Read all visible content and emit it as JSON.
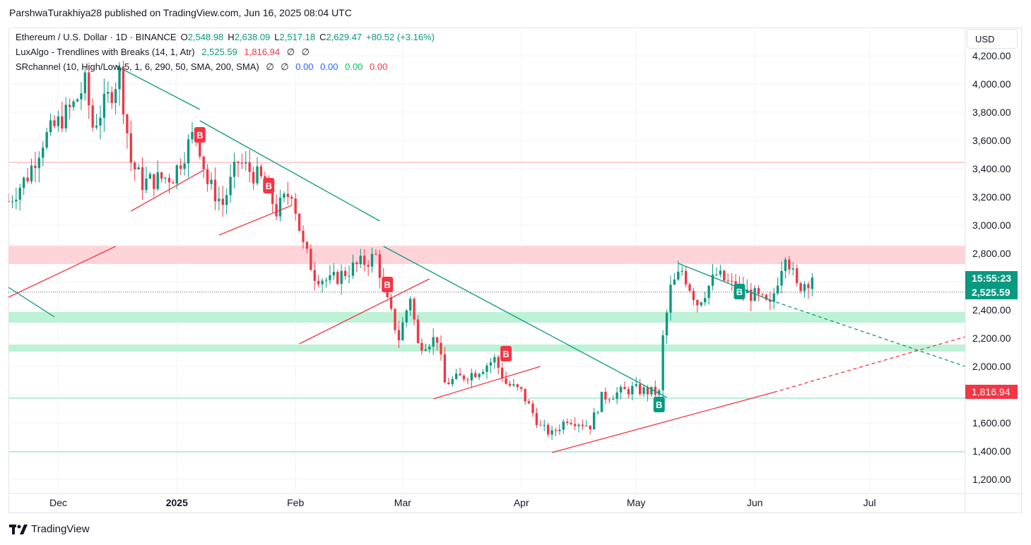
{
  "header": {
    "text": "ParshwaTurakhiya28 published on TradingView.com, Jun 16, 2025 08:04 UTC"
  },
  "legend": {
    "symbol": "Ethereum / U.S. Dollar · 1D · BINANCE",
    "open_label": "O",
    "open": "2,548.98",
    "high_label": "H",
    "high": "2,638.09",
    "low_label": "L",
    "low": "2,517.18",
    "close_label": "C",
    "close": "2,629.47",
    "change": "+80.52 (+3.16%)",
    "luxalgo_name": "LuxAlgo - Trendlines with Breaks (14, 1, Atr)",
    "luxalgo_v1": "2,525.59",
    "luxalgo_v2": "1,816.94",
    "luxalgo_v3": "∅",
    "luxalgo_v4": "∅",
    "sr_name": "SRchannel (10, High/Low, 5, 1, 6, 290, 50, SMA, 200, SMA)",
    "sr_v1": "∅",
    "sr_v2": "∅",
    "sr_v3": "0.00",
    "sr_v4": "0.00",
    "sr_v5": "0.00",
    "sr_v6": "0.00"
  },
  "currency_button": "USD",
  "price_tags": {
    "countdown": "15:55:23",
    "last_price": "2,525.59",
    "trendline_price": "1,816.94"
  },
  "footer": {
    "brand": "TradingView"
  },
  "colors": {
    "up": "#089981",
    "down": "#f23645",
    "resistance_zone": "#ffcdd2",
    "support_zone": "#b2f0d0",
    "trendline_bull": "#f23645",
    "trendline_bear": "#089981"
  },
  "chart_data": {
    "type": "candlestick",
    "symbol": "ETHUSD",
    "interval": "1D",
    "ylim": [
      1100,
      4400
    ],
    "y_ticks": [
      1200,
      1400,
      1600,
      1800,
      2000,
      2200,
      2400,
      2600,
      2800,
      3000,
      3200,
      3400,
      3600,
      3800,
      4000,
      4200
    ],
    "y_tick_labels": [
      "1,200.00",
      "1,400.00",
      "1,600.00",
      "1,800.00",
      "2,000.00",
      "2,200.00",
      "2,400.00",
      "2,600.00",
      "2,800.00",
      "3,000.00",
      "3,200.00",
      "3,400.00",
      "3,600.00",
      "3,800.00",
      "4,000.00",
      "4,200.00"
    ],
    "x_range": [
      "2024-11-18",
      "2025-07-26"
    ],
    "x_ticks": [
      {
        "date": "2024-12-01",
        "label": "Dec"
      },
      {
        "date": "2025-01-01",
        "label": "2025"
      },
      {
        "date": "2025-02-01",
        "label": "Feb"
      },
      {
        "date": "2025-03-01",
        "label": "Mar"
      },
      {
        "date": "2025-04-01",
        "label": "Apr"
      },
      {
        "date": "2025-05-01",
        "label": "May"
      },
      {
        "date": "2025-06-01",
        "label": "Jun"
      },
      {
        "date": "2025-07-01",
        "label": "Jul"
      }
    ],
    "price_line": 2629.47,
    "horizontal_lines": [
      3445
    ],
    "resistance_zones": [
      [
        2725,
        2855
      ]
    ],
    "support_zones": [
      [
        2310,
        2385
      ],
      [
        2105,
        2155
      ]
    ],
    "support_lines": [
      1775,
      1395
    ],
    "close_waypoints": [
      {
        "date": "2024-11-18",
        "close": 3170
      },
      {
        "date": "2024-11-23",
        "close": 3350
      },
      {
        "date": "2024-11-27",
        "close": 3600
      },
      {
        "date": "2024-12-05",
        "close": 3850
      },
      {
        "date": "2024-12-08",
        "close": 4000
      },
      {
        "date": "2024-12-10",
        "close": 3700
      },
      {
        "date": "2024-12-15",
        "close": 3950
      },
      {
        "date": "2024-12-17",
        "close": 4080
      },
      {
        "date": "2024-12-20",
        "close": 3450
      },
      {
        "date": "2024-12-23",
        "close": 3300
      },
      {
        "date": "2024-12-31",
        "close": 3350
      },
      {
        "date": "2025-01-06",
        "close": 3680
      },
      {
        "date": "2025-01-09",
        "close": 3300
      },
      {
        "date": "2025-01-13",
        "close": 3150
      },
      {
        "date": "2025-01-17",
        "close": 3450
      },
      {
        "date": "2025-01-24",
        "close": 3300
      },
      {
        "date": "2025-01-27",
        "close": 3100
      },
      {
        "date": "2025-01-31",
        "close": 3250
      },
      {
        "date": "2025-02-03",
        "close": 2850
      },
      {
        "date": "2025-02-06",
        "close": 2650
      },
      {
        "date": "2025-02-10",
        "close": 2600
      },
      {
        "date": "2025-02-16",
        "close": 2700
      },
      {
        "date": "2025-02-22",
        "close": 2780
      },
      {
        "date": "2025-02-25",
        "close": 2450
      },
      {
        "date": "2025-02-28",
        "close": 2200
      },
      {
        "date": "2025-03-03",
        "close": 2500
      },
      {
        "date": "2025-03-05",
        "close": 2150
      },
      {
        "date": "2025-03-10",
        "close": 2200
      },
      {
        "date": "2025-03-12",
        "close": 1880
      },
      {
        "date": "2025-03-20",
        "close": 1960
      },
      {
        "date": "2025-03-25",
        "close": 2050
      },
      {
        "date": "2025-03-28",
        "close": 1880
      },
      {
        "date": "2025-04-01",
        "close": 1820
      },
      {
        "date": "2025-04-06",
        "close": 1570
      },
      {
        "date": "2025-04-09",
        "close": 1520
      },
      {
        "date": "2025-04-13",
        "close": 1630
      },
      {
        "date": "2025-04-19",
        "close": 1580
      },
      {
        "date": "2025-04-22",
        "close": 1780
      },
      {
        "date": "2025-04-30",
        "close": 1840
      },
      {
        "date": "2025-05-07",
        "close": 1810
      },
      {
        "date": "2025-05-08",
        "close": 2200
      },
      {
        "date": "2025-05-10",
        "close": 2550
      },
      {
        "date": "2025-05-13",
        "close": 2680
      },
      {
        "date": "2025-05-17",
        "close": 2450
      },
      {
        "date": "2025-05-22",
        "close": 2650
      },
      {
        "date": "2025-05-27",
        "close": 2550
      },
      {
        "date": "2025-06-01",
        "close": 2500
      },
      {
        "date": "2025-06-05",
        "close": 2420
      },
      {
        "date": "2025-06-09",
        "close": 2820
      },
      {
        "date": "2025-06-12",
        "close": 2560
      },
      {
        "date": "2025-06-16",
        "close": 2629.47
      }
    ],
    "trendlines": [
      {
        "style": "bear",
        "from": {
          "date": "2024-12-16",
          "price": 4130
        },
        "to": {
          "date": "2025-01-07",
          "price": 3820
        }
      },
      {
        "style": "bear",
        "from": {
          "date": "2025-01-07",
          "price": 3740
        },
        "to": {
          "date": "2025-02-23",
          "price": 3030
        }
      },
      {
        "style": "bear",
        "from": {
          "date": "2025-02-24",
          "price": 2850
        },
        "to": {
          "date": "2025-05-09",
          "price": 1780
        }
      },
      {
        "style": "bear",
        "from": {
          "date": "2025-05-12",
          "price": 2730
        },
        "to": {
          "date": "2025-06-05",
          "price": 2470
        }
      },
      {
        "style": "bear-dashed",
        "from": {
          "date": "2025-06-05",
          "price": 2470
        },
        "to": {
          "date": "2025-07-26",
          "price": 2000
        }
      },
      {
        "style": "bear",
        "from": {
          "date": "2024-11-18",
          "price": 2560
        },
        "to": {
          "date": "2024-11-30",
          "price": 2350
        }
      },
      {
        "style": "bull",
        "from": {
          "date": "2024-11-18",
          "price": 2490
        },
        "to": {
          "date": "2024-12-16",
          "price": 2850
        }
      },
      {
        "style": "bull",
        "from": {
          "date": "2024-12-20",
          "price": 3100
        },
        "to": {
          "date": "2025-01-08",
          "price": 3390
        }
      },
      {
        "style": "bull",
        "from": {
          "date": "2025-01-12",
          "price": 2930
        },
        "to": {
          "date": "2025-01-31",
          "price": 3140
        }
      },
      {
        "style": "bull",
        "from": {
          "date": "2025-02-02",
          "price": 2160
        },
        "to": {
          "date": "2025-03-08",
          "price": 2620
        }
      },
      {
        "style": "bull",
        "from": {
          "date": "2025-03-09",
          "price": 1770
        },
        "to": {
          "date": "2025-04-06",
          "price": 2000
        }
      },
      {
        "style": "bull",
        "from": {
          "date": "2025-04-09",
          "price": 1390
        },
        "to": {
          "date": "2025-06-06",
          "price": 1816.94
        }
      },
      {
        "style": "bull-dashed",
        "from": {
          "date": "2025-06-06",
          "price": 1816.94
        },
        "to": {
          "date": "2025-07-26",
          "price": 2210
        }
      }
    ],
    "break_labels": [
      {
        "date": "2025-01-07",
        "price": 3640,
        "text": "B",
        "color": "down"
      },
      {
        "date": "2025-01-25",
        "price": 3280,
        "text": "B",
        "color": "down"
      },
      {
        "date": "2025-02-25",
        "price": 2580,
        "text": "B",
        "color": "down"
      },
      {
        "date": "2025-03-28",
        "price": 2090,
        "text": "B",
        "color": "down"
      },
      {
        "date": "2025-05-07",
        "price": 1730,
        "text": "B",
        "color": "up"
      },
      {
        "date": "2025-05-28",
        "price": 2530,
        "text": "B",
        "color": "up"
      }
    ]
  }
}
